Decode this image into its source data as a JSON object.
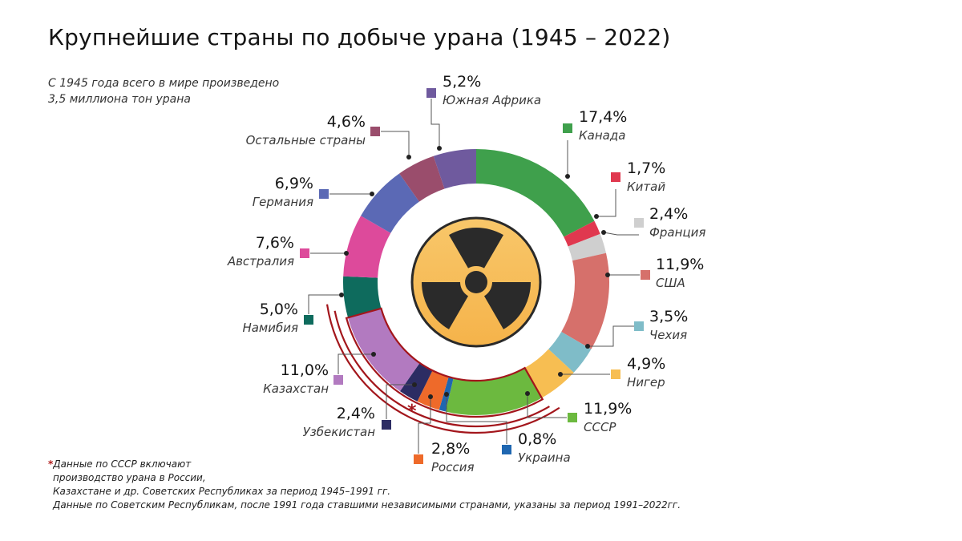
{
  "title": "Крупнейшие страны по добыче урана (1945 – 2022)",
  "subtitle": [
    "С 1945 года всего в мире произведено",
    "3,5 миллиона тон урана"
  ],
  "asterisk": "*",
  "footnote": {
    "line1": "Данные по СССР включают",
    "line2": "производство урана в России,",
    "line3": "Казахстане и др. Советских Республиках за период 1945–1991 гг.",
    "line4": "Данные по Советским Республикам, после  1991 года ставшими независимыми странами, указаны за период 1991–2022гг."
  },
  "icon": "radiation-icon",
  "colors": {
    "highlight": "#a3161c",
    "icon_fill": "#f5b34a",
    "icon_symbol": "#2a2a2a"
  },
  "chart_data": {
    "type": "pie",
    "variant": "donut",
    "unit": "%",
    "slices": [
      {
        "name": "Канада",
        "label": "17,4%",
        "value": 17.4,
        "color": "#3fa04c"
      },
      {
        "name": "Китай",
        "label": "1,7%",
        "value": 1.7,
        "color": "#e0384f"
      },
      {
        "name": "Франция",
        "label": "2,4%",
        "value": 2.4,
        "color": "#cfcfcf"
      },
      {
        "name": "США",
        "label": "11,9%",
        "value": 11.9,
        "color": "#d6706b"
      },
      {
        "name": "Чехия",
        "label": "3,5%",
        "value": 3.5,
        "color": "#7fbcc8"
      },
      {
        "name": "Нигер",
        "label": "4,9%",
        "value": 4.9,
        "color": "#f7be52"
      },
      {
        "name": "СССР",
        "label": "11,9%",
        "value": 11.9,
        "color": "#6cb93f"
      },
      {
        "name": "Украина",
        "label": "0,8%",
        "value": 0.8,
        "color": "#1f67b1"
      },
      {
        "name": "Россия",
        "label": "2,8%",
        "value": 2.8,
        "color": "#ee6a2a"
      },
      {
        "name": "Узбекистан",
        "label": "2,4%",
        "value": 2.4,
        "color": "#2c2c63"
      },
      {
        "name": "Казахстан",
        "label": "11,0%",
        "value": 11.0,
        "color": "#b27ac0"
      },
      {
        "name": "Намибия",
        "label": "5,0%",
        "value": 5.0,
        "color": "#0e6b5d"
      },
      {
        "name": "Австралия",
        "label": "7,6%",
        "value": 7.6,
        "color": "#dd4a9b"
      },
      {
        "name": "Германия",
        "label": "6,9%",
        "value": 6.9,
        "color": "#5b69b5"
      },
      {
        "name": "Остальные страны",
        "label": "4,6%",
        "value": 4.6,
        "color": "#9a4d6c"
      },
      {
        "name": "Южная Африка",
        "label": "5,2%",
        "value": 5.2,
        "color": "#6f5a9e"
      }
    ],
    "soviet_group": [
      "СССР",
      "Украина",
      "Россия",
      "Узбекистан",
      "Казахстан"
    ]
  }
}
